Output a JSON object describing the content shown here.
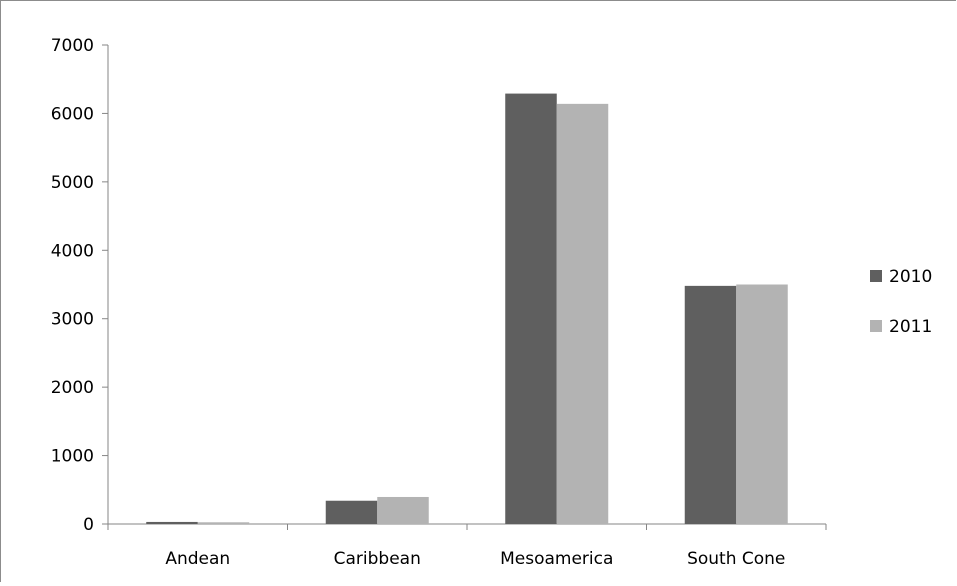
{
  "chart_data": {
    "type": "bar",
    "title": "",
    "xlabel": "",
    "ylabel": "",
    "categories": [
      "Andean",
      "Caribbean",
      "Mesoamerica",
      "South Cone"
    ],
    "series": [
      {
        "name": "2010",
        "values": [
          30,
          340,
          6290,
          3480
        ],
        "color": "#5f5f5f"
      },
      {
        "name": "2011",
        "values": [
          25,
          395,
          6140,
          3500
        ],
        "color": "#b3b3b3"
      }
    ],
    "ylim": [
      0,
      7000
    ],
    "yticks": [
      "0",
      "1000",
      "2000",
      "3000",
      "4000",
      "5000",
      "6000",
      "7000"
    ],
    "grid": false,
    "legend_position": "right"
  }
}
